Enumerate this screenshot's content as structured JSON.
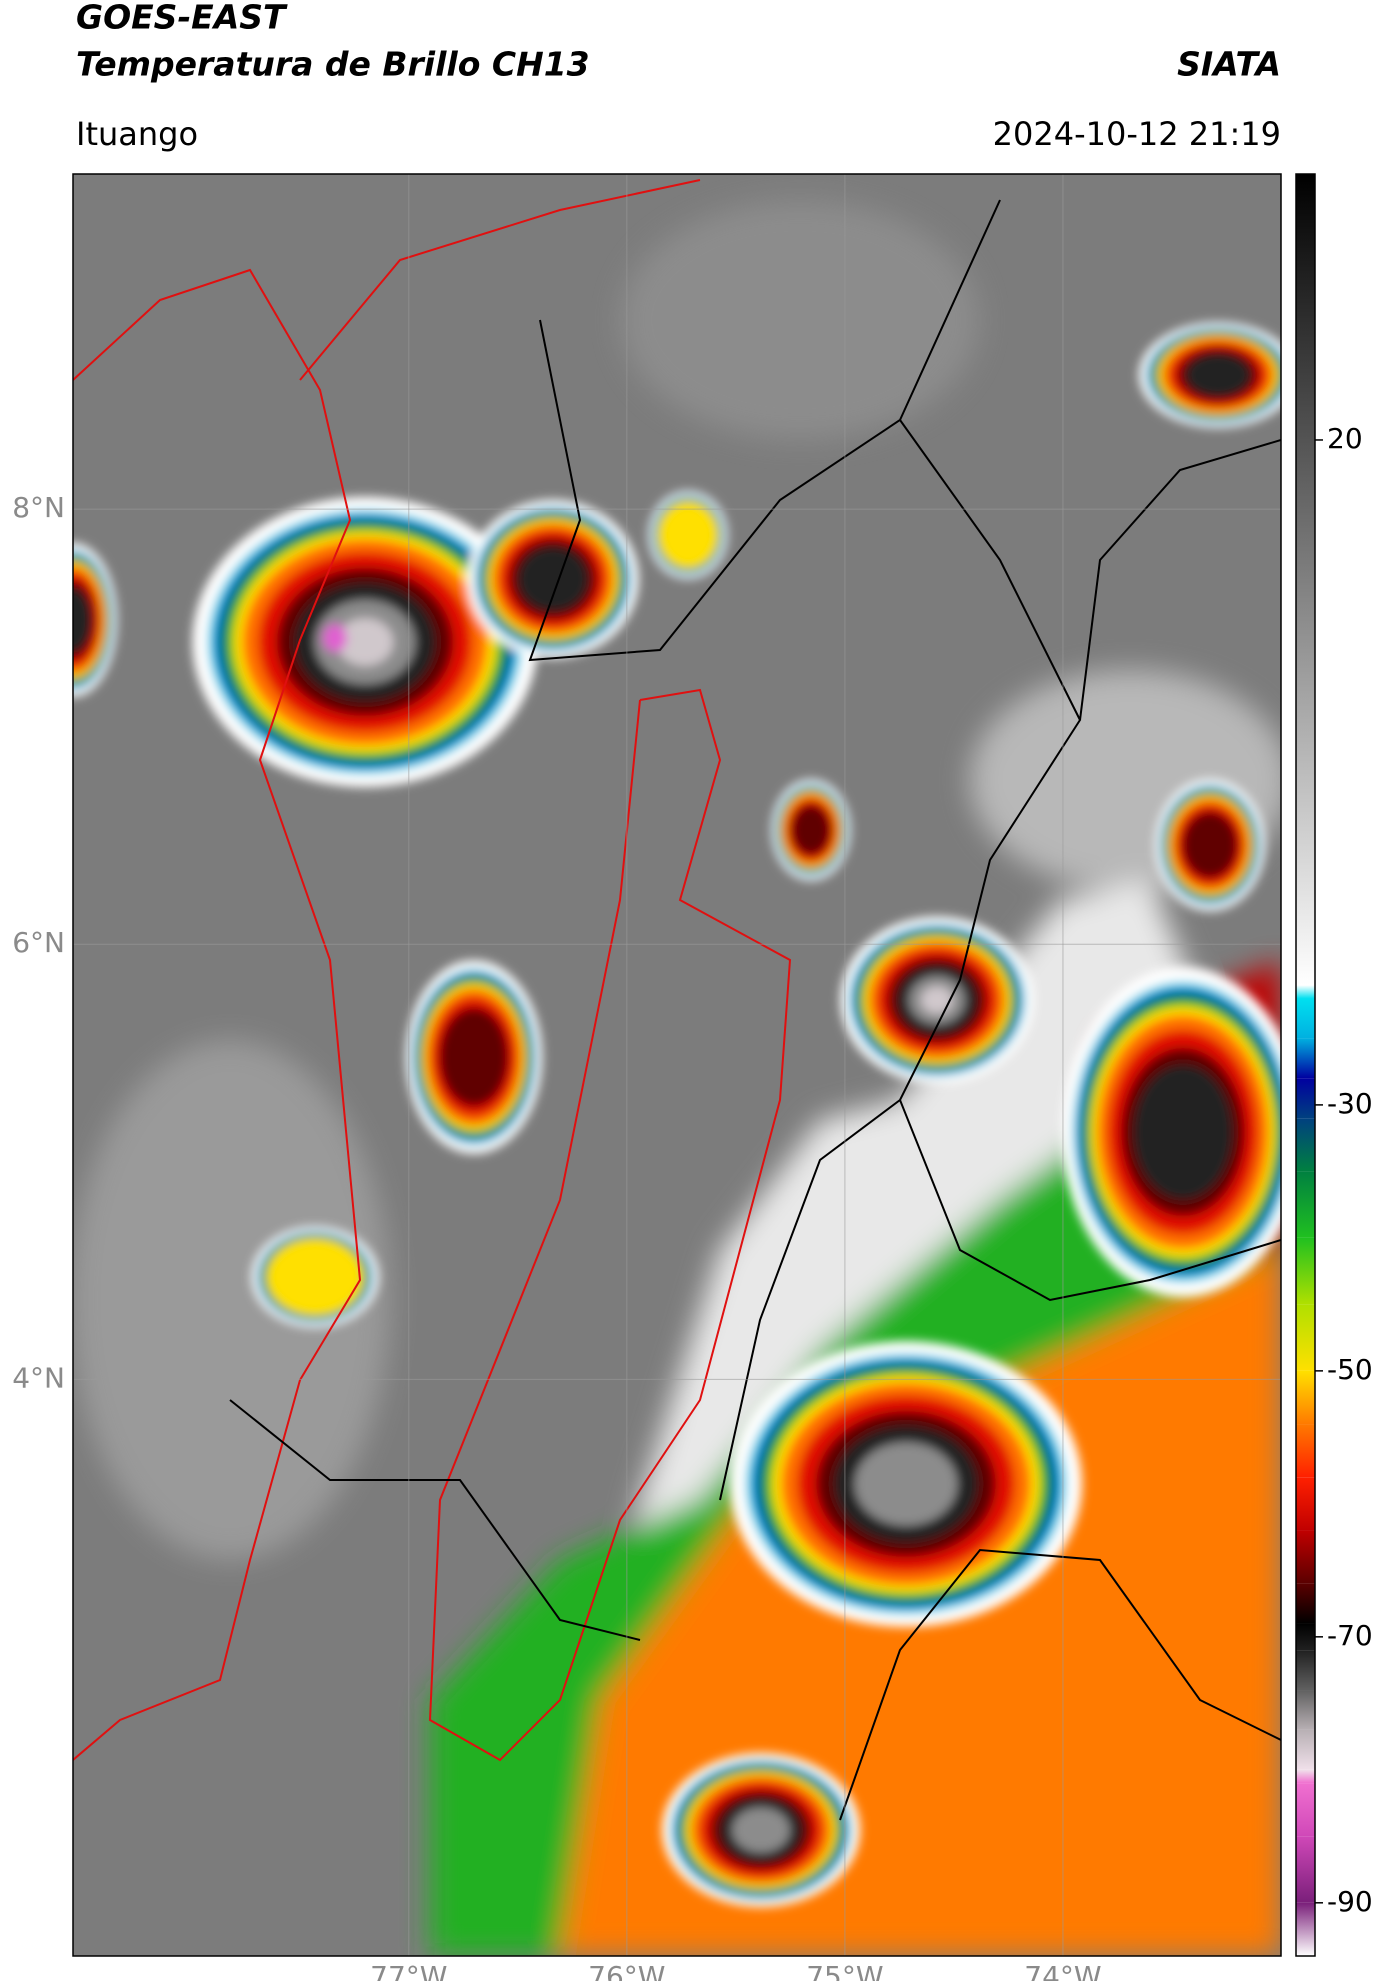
{
  "header": {
    "satellite": "GOES-EAST",
    "product": "Temperatura de Brillo CH13",
    "agency": "SIATA",
    "region": "Ituango",
    "datetime": "2024-10-12 21:19"
  },
  "map": {
    "lon_range": [
      -78.54,
      -73.0
    ],
    "lat_range": [
      1.35,
      9.54
    ],
    "grid": true,
    "lat_ticks": [
      {
        "value": 8,
        "label": "8°N"
      },
      {
        "value": 6,
        "label": "6°N"
      },
      {
        "value": 4,
        "label": "4°N"
      }
    ],
    "lon_ticks": [
      {
        "value": -77,
        "label": "77°W"
      },
      {
        "value": -76,
        "label": "76°W"
      },
      {
        "value": -75,
        "label": "75°W"
      },
      {
        "value": -74,
        "label": "74°W"
      }
    ]
  },
  "colorbar": {
    "range": [
      -94,
      40
    ],
    "ticks": [
      20,
      -30,
      -50,
      -70,
      -90
    ],
    "stops": [
      {
        "value": -94,
        "color": "#ffffff"
      },
      {
        "value": -90,
        "color": "#7a1f7a"
      },
      {
        "value": -85,
        "color": "#d048b8"
      },
      {
        "value": -81,
        "color": "#f070d0"
      },
      {
        "value": -80,
        "color": "#f0e0ea"
      },
      {
        "value": -77,
        "color": "#b8b0b4"
      },
      {
        "value": -74,
        "color": "#606060"
      },
      {
        "value": -71,
        "color": "#202020"
      },
      {
        "value": -69,
        "color": "#000000"
      },
      {
        "value": -66,
        "color": "#5a0000"
      },
      {
        "value": -62,
        "color": "#c00000"
      },
      {
        "value": -58,
        "color": "#ff2000"
      },
      {
        "value": -54,
        "color": "#ff7a00"
      },
      {
        "value": -50,
        "color": "#ffe000"
      },
      {
        "value": -45,
        "color": "#b0e000"
      },
      {
        "value": -40,
        "color": "#20c020"
      },
      {
        "value": -35,
        "color": "#008040"
      },
      {
        "value": -31,
        "color": "#004080"
      },
      {
        "value": -28,
        "color": "#0000a0"
      },
      {
        "value": -25,
        "color": "#00b0e0"
      },
      {
        "value": -22,
        "color": "#00e0f0"
      },
      {
        "value": -21,
        "color": "#ffffff"
      },
      {
        "value": 40,
        "color": "#000000"
      }
    ]
  }
}
